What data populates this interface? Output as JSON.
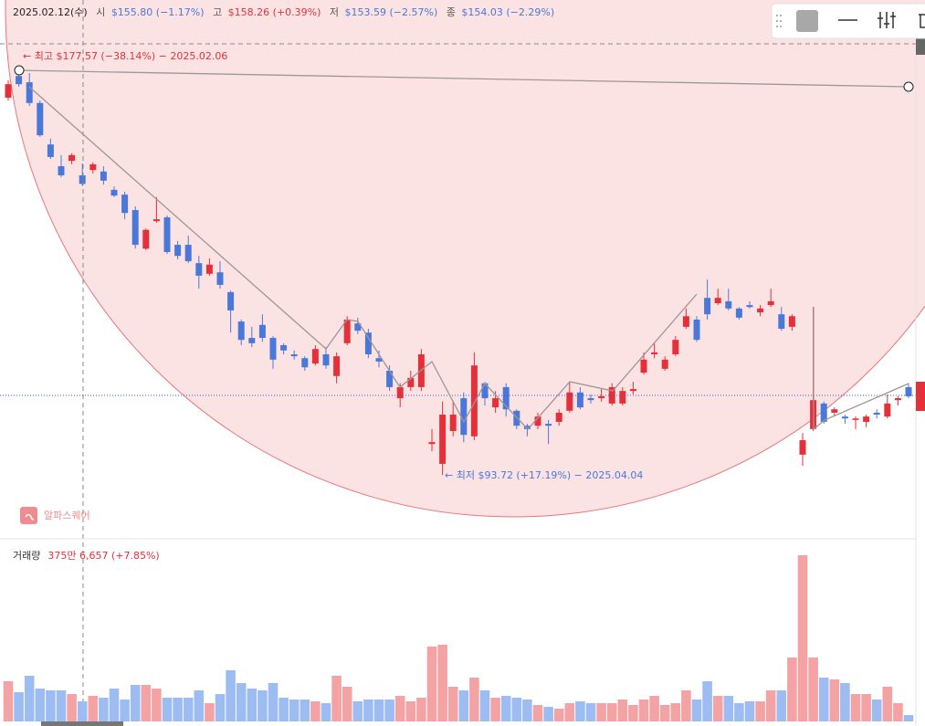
{
  "chart_data": {
    "type": "candlestick",
    "header": {
      "date": "2025.02.12(수)",
      "open_label": "시",
      "open_text": "$155.80 (−1.17%)",
      "high_label": "고",
      "high_text": "$158.26 (+0.39%)",
      "low_label": "저",
      "low_text": "$153.59 (−2.57%)",
      "close_label": "종",
      "close_text": "$154.03 (−2.29%)"
    },
    "annotations": {
      "high": "← 최고 $177.57 (−38.14%) − 2025.02.06",
      "low": "← 최저 $93.72 (+17.19%) − 2025.04.04",
      "watermark": "알파스퀘어"
    },
    "up_color": "#e5303a",
    "down_color": "#4a78d8",
    "ylim": [
      80.46,
      192.15
    ],
    "open": [
      171.9,
      176.4,
      175.1,
      170.8,
      162.2,
      157.7,
      158.8,
      155.8,
      156.9,
      156.6,
      152.8,
      151.8,
      148.6,
      140.6,
      146.3,
      147.1,
      141.4,
      141.4,
      137.6,
      135.4,
      135.7,
      131.6,
      125.5,
      122.1,
      124.8,
      122.1,
      120.6,
      118.7,
      117.9,
      116.8,
      118.7,
      114.2,
      121.0,
      125.1,
      123.2,
      117.9,
      115.3,
      109.6,
      111.9,
      111.9,
      100.1,
      96.0,
      102.8,
      109.6,
      101.7,
      112.7,
      107.7,
      111.9,
      107.0,
      103.9,
      103.9,
      104.3,
      104.7,
      107.0,
      110.8,
      109.6,
      109.6,
      108.5,
      108.5,
      111.1,
      114.9,
      118.7,
      115.7,
      118.7,
      124.4,
      125.9,
      130.4,
      129.3,
      129.7,
      128.2,
      128.9,
      127.4,
      128.9,
      127.0,
      124.4,
      97.9,
      103.2,
      108.5,
      106.6,
      105.8,
      105.1,
      104.7,
      106.6,
      105.8,
      109.2,
      111.9
    ],
    "high": [
      175.5,
      177.57,
      177.0,
      171.3,
      163.4,
      160.0,
      160.4,
      158.26,
      158.5,
      157.7,
      153.5,
      152.4,
      149.4,
      144.8,
      151.3,
      147.5,
      142.2,
      143.3,
      139.1,
      138.6,
      138.0,
      131.9,
      125.9,
      124.4,
      127.0,
      122.5,
      121.0,
      119.5,
      118.3,
      120.6,
      120.2,
      119.1,
      126.6,
      126.3,
      124.0,
      119.5,
      116.4,
      112.7,
      115.3,
      119.8,
      103.2,
      108.9,
      108.9,
      110.8,
      119.1,
      113.0,
      111.1,
      112.7,
      107.3,
      104.3,
      106.6,
      105.1,
      107.3,
      113.0,
      111.9,
      110.4,
      111.5,
      112.7,
      111.9,
      113.0,
      119.1,
      121.0,
      118.3,
      122.5,
      128.2,
      126.6,
      134.2,
      132.3,
      132.3,
      128.5,
      129.7,
      128.9,
      132.3,
      128.5,
      127.0,
      102.4,
      128.5,
      108.9,
      107.7,
      106.2,
      105.8,
      106.2,
      107.3,
      110.4,
      110.0,
      112.7
    ],
    "low": [
      171.3,
      174.2,
      170.2,
      163.8,
      159.2,
      155.4,
      158.1,
      153.59,
      156.2,
      153.9,
      151.3,
      146.7,
      140.6,
      140.3,
      146.0,
      139.5,
      138.4,
      137.6,
      132.3,
      135.0,
      132.3,
      123.2,
      120.6,
      120.2,
      121.3,
      115.7,
      118.7,
      117.6,
      115.3,
      116.4,
      115.7,
      112.7,
      120.6,
      122.9,
      117.9,
      116.0,
      111.1,
      107.7,
      111.1,
      111.1,
      98.6,
      93.72,
      101.7,
      100.5,
      100.9,
      108.1,
      106.6,
      105.8,
      103.2,
      101.7,
      103.2,
      100.1,
      103.9,
      106.6,
      107.3,
      108.5,
      108.9,
      108.1,
      108.1,
      110.4,
      114.5,
      117.9,
      115.3,
      118.3,
      124.0,
      121.3,
      125.9,
      128.9,
      127.8,
      125.9,
      128.2,
      126.6,
      128.5,
      123.6,
      123.6,
      95.6,
      102.8,
      104.3,
      105.8,
      104.3,
      103.2,
      103.6,
      105.4,
      105.4,
      108.1,
      109.6
    ],
    "close": [
      174.7,
      174.7,
      170.8,
      164.1,
      159.6,
      155.8,
      160.0,
      154.03,
      158.1,
      154.7,
      151.6,
      148.0,
      141.4,
      144.5,
      146.7,
      139.9,
      139.1,
      138.0,
      135.0,
      137.3,
      133.1,
      127.8,
      121.7,
      121.0,
      122.1,
      117.6,
      119.5,
      118.3,
      116.0,
      119.8,
      116.4,
      118.3,
      125.9,
      123.6,
      118.7,
      117.2,
      111.9,
      111.9,
      113.8,
      118.7,
      100.5,
      106.2,
      106.2,
      102.0,
      116.4,
      109.6,
      109.6,
      107.3,
      103.9,
      103.2,
      105.8,
      103.9,
      106.6,
      110.8,
      107.7,
      109.2,
      110.0,
      111.9,
      111.1,
      111.5,
      117.6,
      119.1,
      117.6,
      121.7,
      126.6,
      121.7,
      127.0,
      130.4,
      128.2,
      126.3,
      128.5,
      128.2,
      129.7,
      124.0,
      126.6,
      100.9,
      109.2,
      104.7,
      107.3,
      105.4,
      105.4,
      105.8,
      106.2,
      108.5,
      109.6,
      110.0
    ],
    "volume": {
      "label": "거래량",
      "last_text": "375만 6,657 (+7.85%)",
      "up_color": "#f4a3a5",
      "down_color": "#9dbdf2",
      "ylim": [
        0,
        10260
      ],
      "values": [
        2376,
        1728,
        2700,
        1944,
        1836,
        1836,
        1620,
        1188,
        1512,
        1404,
        1944,
        1296,
        2160,
        2160,
        1944,
        1404,
        1404,
        1404,
        1836,
        1080,
        1620,
        3024,
        2268,
        1944,
        1836,
        2268,
        1404,
        1296,
        1296,
        1188,
        1080,
        2700,
        2052,
        1188,
        1296,
        1296,
        1296,
        1512,
        1188,
        1404,
        4428,
        4536,
        2052,
        1836,
        2592,
        1836,
        1404,
        1512,
        1404,
        1296,
        972,
        864,
        756,
        1080,
        1188,
        1080,
        1080,
        1080,
        1296,
        972,
        1296,
        1512,
        972,
        1080,
        1836,
        1296,
        2376,
        1512,
        1512,
        1080,
        1188,
        1188,
        1836,
        1836,
        3780,
        9828,
        3780,
        2592,
        2484,
        2268,
        1620,
        1620,
        1296,
        2052,
        1080,
        375.7
      ]
    }
  }
}
